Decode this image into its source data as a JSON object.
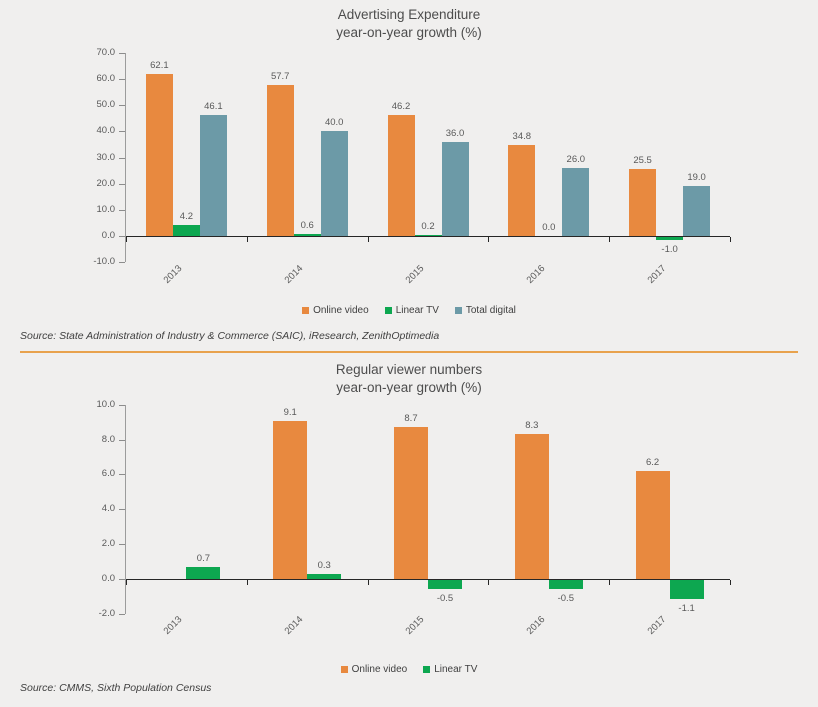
{
  "page": {
    "background_color": "#f0efee",
    "divider_color": "#e8a24d"
  },
  "chart_data": [
    {
      "type": "bar",
      "title": "Advertising Expenditure",
      "subtitle": "year-on-year growth (%)",
      "categories": [
        "2013",
        "2014",
        "2015",
        "2016",
        "2017"
      ],
      "series": [
        {
          "name": "Online video",
          "color": "#e8893f",
          "values": [
            62.1,
            57.7,
            46.2,
            34.8,
            25.5
          ]
        },
        {
          "name": "Linear TV",
          "color": "#0da750",
          "values": [
            4.2,
            0.6,
            0.2,
            0.0,
            -1.0
          ]
        },
        {
          "name": "Total digital",
          "color": "#6c9aa7",
          "values": [
            46.1,
            40.0,
            36.0,
            26.0,
            19.0
          ]
        }
      ],
      "y_ticks": [
        70,
        60,
        50,
        40,
        30,
        20,
        10,
        0,
        -10
      ],
      "ylim": [
        -10,
        70
      ],
      "grid": false,
      "value_labels": true,
      "label_format": "one_decimal",
      "legend_position": "bottom",
      "source": "Source: State Administration of Industry & Commerce (SAIC), iResearch, ZenithOptimedia"
    },
    {
      "type": "bar",
      "title": "Regular viewer numbers",
      "subtitle": "year-on-year growth (%)",
      "categories": [
        "2013",
        "2014",
        "2015",
        "2016",
        "2017"
      ],
      "series": [
        {
          "name": "Online video",
          "color": "#e8893f",
          "values": [
            null,
            9.1,
            8.7,
            8.3,
            6.2
          ]
        },
        {
          "name": "Linear TV",
          "color": "#0da750",
          "values": [
            0.7,
            0.3,
            -0.5,
            -0.5,
            -1.1
          ]
        }
      ],
      "y_ticks": [
        10,
        8,
        6,
        4,
        2,
        0,
        -2
      ],
      "ylim": [
        -2,
        10
      ],
      "grid": false,
      "value_labels": true,
      "label_format": "one_decimal",
      "legend_position": "bottom",
      "source": "Source: CMMS, Sixth Population Census"
    }
  ]
}
